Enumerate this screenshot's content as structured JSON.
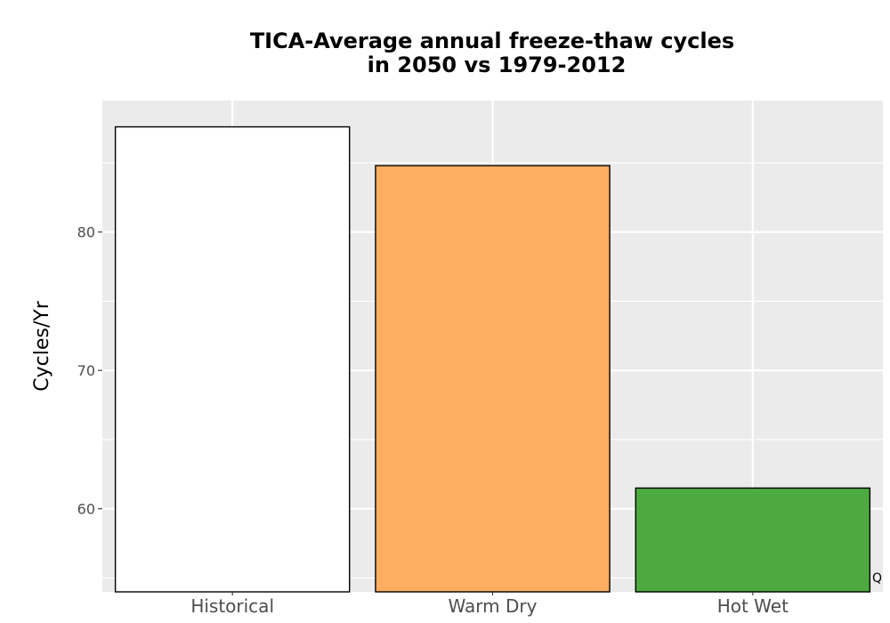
{
  "chart_data": {
    "type": "bar",
    "title_lines": [
      "TICA-Average annual freeze-thaw cycles",
      "in 2050 vs 1979-2012"
    ],
    "xlabel": "",
    "ylabel": "Cycles/Yr",
    "categories": [
      "Historical",
      "Warm Dry",
      "Hot Wet"
    ],
    "values": [
      87.6,
      84.8,
      61.5
    ],
    "colors": [
      "#ffffff",
      "#fdae61",
      "#4daa3f"
    ],
    "ylim": [
      54,
      89.5
    ],
    "yticks": [
      60,
      70,
      80
    ],
    "ytick_labels": [
      "60",
      "70",
      "80"
    ],
    "grid": true,
    "corner_note": "Q"
  }
}
